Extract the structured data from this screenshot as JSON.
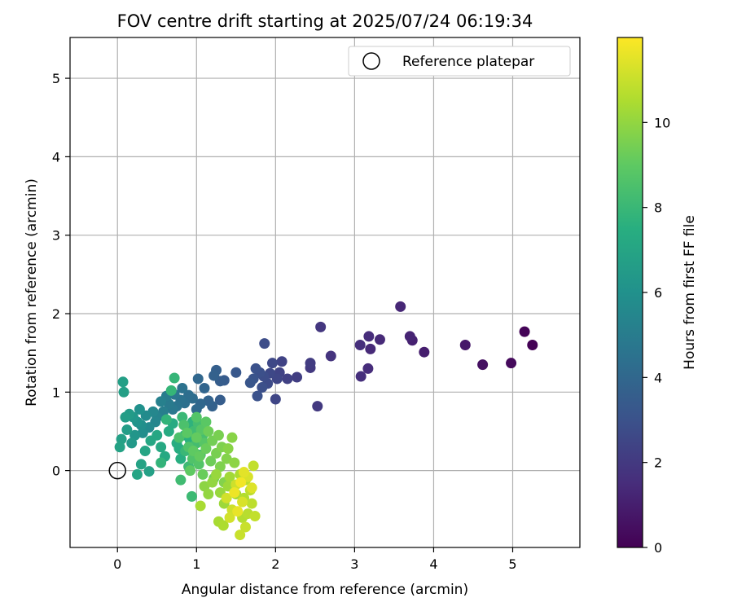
{
  "chart_data": {
    "type": "scatter",
    "title": "FOV centre drift starting at 2025/07/24 06:19:34",
    "xlabel": "Angular distance from reference (arcmin)",
    "ylabel": "Rotation from reference (arcmin)",
    "xlim": [
      -0.6,
      5.85
    ],
    "ylim": [
      -0.98,
      5.52
    ],
    "xticks": [
      0,
      1,
      2,
      3,
      4,
      5
    ],
    "yticks": [
      0,
      1,
      2,
      3,
      4,
      5
    ],
    "grid": true,
    "legend": {
      "position": "top-right",
      "entries": [
        {
          "label": "Reference platepar",
          "marker": "open-circle",
          "color": "#000000"
        }
      ]
    },
    "reference_point": {
      "x": 0,
      "y": 0
    },
    "colorbar": {
      "label": "Hours from first FF file",
      "colormap": "viridis",
      "range": [
        0,
        12
      ],
      "ticks": [
        0,
        2,
        4,
        6,
        8,
        10
      ]
    },
    "series": [
      {
        "points": [
          [
            5.25,
            1.6,
            0.05
          ],
          [
            5.15,
            1.77,
            0.1
          ],
          [
            4.98,
            1.37,
            0.3
          ],
          [
            4.62,
            1.35,
            0.5
          ],
          [
            4.4,
            1.6,
            0.8
          ],
          [
            3.88,
            1.51,
            1.0
          ],
          [
            3.73,
            1.66,
            1.1
          ],
          [
            3.7,
            1.71,
            1.2
          ],
          [
            3.58,
            2.09,
            1.3
          ],
          [
            3.32,
            1.67,
            1.4
          ],
          [
            3.2,
            1.55,
            1.4
          ],
          [
            3.18,
            1.71,
            1.5
          ],
          [
            3.17,
            1.3,
            1.5
          ],
          [
            3.08,
            1.2,
            1.6
          ],
          [
            3.07,
            1.6,
            1.6
          ],
          [
            2.7,
            1.46,
            1.8
          ],
          [
            2.57,
            1.83,
            1.9
          ],
          [
            2.53,
            0.82,
            2.0
          ],
          [
            2.44,
            1.31,
            2.0
          ],
          [
            2.44,
            1.37,
            2.1
          ],
          [
            2.27,
            1.19,
            2.2
          ],
          [
            2.15,
            1.17,
            2.3
          ],
          [
            2.08,
            1.39,
            2.4
          ],
          [
            2.05,
            1.25,
            2.4
          ],
          [
            2.02,
            1.17,
            2.5
          ],
          [
            2.0,
            0.91,
            2.5
          ],
          [
            1.96,
            1.37,
            2.6
          ],
          [
            1.93,
            1.24,
            2.6
          ],
          [
            1.9,
            1.11,
            2.7
          ],
          [
            1.86,
            1.62,
            2.8
          ],
          [
            1.85,
            1.2,
            2.8
          ],
          [
            1.83,
            1.06,
            2.9
          ],
          [
            1.8,
            1.25,
            2.9
          ],
          [
            1.77,
            0.95,
            3.0
          ],
          [
            1.75,
            1.3,
            3.0
          ],
          [
            1.72,
            1.17,
            3.1
          ],
          [
            1.68,
            1.12,
            3.2
          ],
          [
            1.5,
            1.25,
            3.3
          ],
          [
            1.35,
            1.15,
            3.4
          ],
          [
            1.3,
            1.14,
            3.5
          ],
          [
            1.3,
            0.9,
            3.5
          ],
          [
            1.25,
            1.28,
            3.6
          ],
          [
            1.22,
            1.21,
            3.7
          ],
          [
            1.2,
            0.82,
            3.7
          ],
          [
            1.15,
            0.89,
            3.8
          ],
          [
            1.1,
            1.05,
            3.9
          ],
          [
            1.02,
            1.17,
            4.0
          ],
          [
            1.05,
            0.85,
            4.0
          ],
          [
            1.0,
            0.78,
            4.1
          ],
          [
            0.95,
            0.92,
            4.2
          ],
          [
            0.9,
            0.96,
            4.3
          ],
          [
            0.85,
            0.86,
            4.4
          ],
          [
            0.82,
            1.05,
            4.5
          ],
          [
            0.8,
            0.9,
            4.5
          ],
          [
            0.75,
            0.82,
            4.6
          ],
          [
            0.72,
            0.97,
            4.7
          ],
          [
            0.7,
            0.78,
            4.8
          ],
          [
            0.65,
            0.85,
            4.9
          ],
          [
            0.62,
            0.95,
            5.0
          ],
          [
            0.58,
            0.75,
            5.1
          ],
          [
            0.55,
            0.88,
            5.2
          ],
          [
            0.5,
            0.68,
            5.3
          ],
          [
            0.48,
            0.62,
            5.4
          ],
          [
            0.45,
            0.75,
            5.5
          ],
          [
            0.4,
            0.55,
            5.6
          ],
          [
            0.36,
            0.7,
            5.7
          ],
          [
            0.32,
            0.48,
            5.8
          ],
          [
            0.3,
            0.58,
            5.9
          ],
          [
            0.28,
            0.78,
            6.0
          ],
          [
            0.25,
            0.62,
            6.1
          ],
          [
            0.22,
            0.45,
            6.2
          ],
          [
            0.2,
            0.68,
            6.3
          ],
          [
            0.18,
            0.35,
            6.4
          ],
          [
            0.15,
            0.72,
            6.5
          ],
          [
            0.12,
            0.52,
            6.6
          ],
          [
            0.1,
            0.68,
            6.6
          ],
          [
            0.08,
            1.0,
            6.7
          ],
          [
            0.07,
            1.13,
            6.7
          ],
          [
            0.05,
            0.4,
            6.8
          ],
          [
            0.03,
            0.3,
            6.9
          ],
          [
            0.4,
            -0.01,
            6.8
          ],
          [
            0.3,
            0.08,
            6.9
          ],
          [
            0.25,
            -0.05,
            7.0
          ],
          [
            0.35,
            0.25,
            7.0
          ],
          [
            0.42,
            0.38,
            7.1
          ],
          [
            0.5,
            0.45,
            7.1
          ],
          [
            0.55,
            0.3,
            7.2
          ],
          [
            0.6,
            0.18,
            7.2
          ],
          [
            0.65,
            0.5,
            7.3
          ],
          [
            0.7,
            0.6,
            7.3
          ],
          [
            0.75,
            0.35,
            7.4
          ],
          [
            0.78,
            0.28,
            7.4
          ],
          [
            0.8,
            0.15,
            7.5
          ],
          [
            0.85,
            0.45,
            7.5
          ],
          [
            0.88,
            0.55,
            7.6
          ],
          [
            0.92,
            0.38,
            7.6
          ],
          [
            0.95,
            0.62,
            7.7
          ],
          [
            0.98,
            0.22,
            7.7
          ],
          [
            0.55,
            0.1,
            7.8
          ],
          [
            0.62,
            0.65,
            7.8
          ],
          [
            0.68,
            1.02,
            7.9
          ],
          [
            0.72,
            1.18,
            7.9
          ],
          [
            0.82,
            0.68,
            8.0
          ],
          [
            0.86,
            0.25,
            8.0
          ],
          [
            0.9,
            0.05,
            8.1
          ],
          [
            0.94,
            -0.33,
            8.1
          ],
          [
            0.8,
            -0.12,
            8.2
          ],
          [
            0.96,
            0.5,
            8.2
          ],
          [
            1.0,
            0.35,
            8.3
          ],
          [
            1.02,
            0.6,
            8.3
          ],
          [
            1.05,
            0.2,
            8.4
          ],
          [
            1.08,
            0.45,
            8.4
          ],
          [
            0.78,
            0.42,
            8.5
          ],
          [
            0.84,
            0.58,
            8.5
          ],
          [
            0.9,
            0.3,
            8.6
          ],
          [
            0.95,
            0.15,
            8.6
          ],
          [
            1.0,
            0.68,
            8.7
          ],
          [
            1.03,
            0.08,
            8.7
          ],
          [
            1.06,
            0.52,
            8.8
          ],
          [
            1.1,
            0.35,
            8.8
          ],
          [
            1.12,
            0.62,
            8.9
          ],
          [
            0.88,
            0.48,
            8.9
          ],
          [
            0.92,
            0.0,
            9.0
          ],
          [
            0.96,
            0.25,
            9.0
          ],
          [
            1.0,
            0.42,
            9.1
          ],
          [
            1.04,
            0.18,
            9.1
          ],
          [
            1.08,
            -0.05,
            9.2
          ],
          [
            1.12,
            0.28,
            9.2
          ],
          [
            1.15,
            0.5,
            9.3
          ],
          [
            1.18,
            0.12,
            9.3
          ],
          [
            1.2,
            0.38,
            9.4
          ],
          [
            1.22,
            -0.1,
            9.4
          ],
          [
            1.25,
            0.22,
            9.5
          ],
          [
            1.28,
            0.45,
            9.5
          ],
          [
            1.3,
            0.05,
            9.6
          ],
          [
            1.32,
            0.3,
            9.6
          ],
          [
            1.35,
            -0.15,
            9.7
          ],
          [
            1.38,
            0.15,
            9.7
          ],
          [
            1.4,
            0.28,
            9.8
          ],
          [
            1.45,
            0.42,
            9.8
          ],
          [
            1.48,
            0.1,
            9.9
          ],
          [
            1.1,
            -0.2,
            9.9
          ],
          [
            1.15,
            -0.3,
            10.0
          ],
          [
            1.2,
            -0.15,
            10.0
          ],
          [
            1.25,
            -0.05,
            10.1
          ],
          [
            1.3,
            -0.28,
            10.1
          ],
          [
            1.35,
            -0.42,
            10.2
          ],
          [
            1.4,
            -0.2,
            10.2
          ],
          [
            1.42,
            -0.08,
            10.3
          ],
          [
            1.5,
            -0.3,
            10.3
          ],
          [
            1.05,
            -0.45,
            10.4
          ],
          [
            1.28,
            -0.65,
            10.4
          ],
          [
            1.34,
            -0.7,
            10.5
          ],
          [
            1.55,
            -0.05,
            10.5
          ],
          [
            1.58,
            -0.6,
            10.6
          ],
          [
            1.6,
            -0.35,
            10.6
          ],
          [
            1.62,
            -0.12,
            10.7
          ],
          [
            1.65,
            -0.55,
            10.7
          ],
          [
            1.68,
            -0.25,
            10.8
          ],
          [
            1.7,
            -0.42,
            10.8
          ],
          [
            1.72,
            0.06,
            10.9
          ],
          [
            1.74,
            -0.58,
            10.9
          ],
          [
            1.55,
            -0.82,
            11.0
          ],
          [
            1.62,
            -0.72,
            11.0
          ],
          [
            1.45,
            -0.5,
            11.1
          ],
          [
            1.5,
            -0.18,
            11.1
          ],
          [
            1.38,
            -0.35,
            11.2
          ],
          [
            1.42,
            -0.6,
            11.2
          ],
          [
            1.58,
            -0.4,
            11.3
          ],
          [
            1.65,
            -0.08,
            11.3
          ],
          [
            1.7,
            -0.22,
            11.4
          ],
          [
            1.6,
            -0.02,
            11.5
          ],
          [
            1.52,
            -0.52,
            11.6
          ],
          [
            1.48,
            -0.28,
            11.7
          ],
          [
            1.56,
            -0.15,
            11.8
          ]
        ]
      }
    ]
  }
}
